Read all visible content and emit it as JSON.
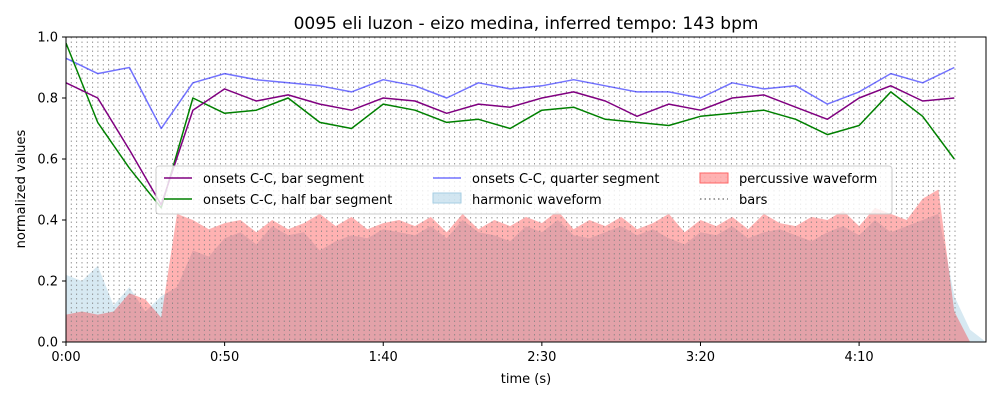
{
  "chart_data": {
    "type": "line",
    "title": "0095 eli luzon - eizo medina, inferred tempo: 143 bpm",
    "xlabel": "time (s)",
    "ylabel": "normalized values",
    "xlim": [
      0,
      290
    ],
    "ylim": [
      0,
      1.0
    ],
    "x_ticks": [
      {
        "value": 0,
        "label": "0:00"
      },
      {
        "value": 50,
        "label": "0:50"
      },
      {
        "value": 100,
        "label": "1:40"
      },
      {
        "value": 150,
        "label": "2:30"
      },
      {
        "value": 200,
        "label": "3:20"
      },
      {
        "value": 250,
        "label": "4:10"
      }
    ],
    "y_ticks": [
      {
        "value": 0.0,
        "label": "0.0"
      },
      {
        "value": 0.2,
        "label": "0.2"
      },
      {
        "value": 0.4,
        "label": "0.4"
      },
      {
        "value": 0.6,
        "label": "0.6"
      },
      {
        "value": 0.8,
        "label": "0.8"
      },
      {
        "value": 1.0,
        "label": "1.0"
      }
    ],
    "grid": false,
    "legend_position": "center",
    "legend_columns": 3,
    "bar_lines": {
      "name": "bars",
      "start": 0,
      "end": 281,
      "interval_seconds": 1.678,
      "color": "#808080"
    },
    "series": [
      {
        "name": "onsets C-C, bar segment",
        "kind": "line",
        "color": "#800080",
        "x": [
          0,
          10,
          20,
          30,
          40,
          50,
          60,
          70,
          80,
          90,
          100,
          110,
          120,
          130,
          140,
          150,
          160,
          170,
          180,
          190,
          200,
          210,
          220,
          230,
          240,
          250,
          260,
          270,
          280
        ],
        "values": [
          0.85,
          0.8,
          0.63,
          0.45,
          0.76,
          0.83,
          0.79,
          0.81,
          0.78,
          0.76,
          0.8,
          0.79,
          0.75,
          0.78,
          0.77,
          0.8,
          0.82,
          0.79,
          0.74,
          0.78,
          0.76,
          0.8,
          0.81,
          0.77,
          0.73,
          0.8,
          0.84,
          0.79,
          0.8
        ]
      },
      {
        "name": "onsets C-C, half bar segment",
        "kind": "line",
        "color": "#008000",
        "x": [
          0,
          10,
          20,
          30,
          40,
          50,
          60,
          70,
          80,
          90,
          100,
          110,
          120,
          130,
          140,
          150,
          160,
          170,
          180,
          190,
          200,
          210,
          220,
          230,
          240,
          250,
          260,
          270,
          280
        ],
        "values": [
          0.98,
          0.72,
          0.57,
          0.44,
          0.8,
          0.75,
          0.76,
          0.8,
          0.72,
          0.7,
          0.78,
          0.76,
          0.72,
          0.73,
          0.7,
          0.76,
          0.77,
          0.73,
          0.72,
          0.71,
          0.74,
          0.75,
          0.76,
          0.73,
          0.68,
          0.71,
          0.82,
          0.74,
          0.6
        ]
      },
      {
        "name": "onsets C-C, quarter segment",
        "kind": "line",
        "color": "#0000ff",
        "x": [
          0,
          10,
          20,
          30,
          40,
          50,
          60,
          70,
          80,
          90,
          100,
          110,
          120,
          130,
          140,
          150,
          160,
          170,
          180,
          190,
          200,
          210,
          220,
          230,
          240,
          250,
          260,
          270,
          280
        ],
        "values": [
          0.93,
          0.88,
          0.9,
          0.7,
          0.85,
          0.88,
          0.86,
          0.85,
          0.84,
          0.82,
          0.86,
          0.84,
          0.8,
          0.85,
          0.83,
          0.84,
          0.86,
          0.84,
          0.82,
          0.82,
          0.8,
          0.85,
          0.83,
          0.84,
          0.78,
          0.82,
          0.88,
          0.85,
          0.9
        ]
      },
      {
        "name": "harmonic waveform",
        "kind": "area",
        "color": "#a6cee3",
        "x": [
          0,
          5,
          10,
          15,
          20,
          25,
          30,
          35,
          40,
          45,
          50,
          55,
          60,
          65,
          70,
          75,
          80,
          85,
          90,
          95,
          100,
          105,
          110,
          115,
          120,
          125,
          130,
          135,
          140,
          145,
          150,
          155,
          160,
          165,
          170,
          175,
          180,
          185,
          190,
          195,
          200,
          205,
          210,
          215,
          220,
          225,
          230,
          235,
          240,
          245,
          250,
          255,
          260,
          265,
          270,
          275,
          280,
          285,
          290
        ],
        "values": [
          0.22,
          0.2,
          0.25,
          0.12,
          0.18,
          0.1,
          0.15,
          0.18,
          0.3,
          0.28,
          0.34,
          0.36,
          0.32,
          0.38,
          0.35,
          0.36,
          0.3,
          0.33,
          0.35,
          0.34,
          0.37,
          0.36,
          0.35,
          0.38,
          0.34,
          0.4,
          0.36,
          0.35,
          0.33,
          0.38,
          0.36,
          0.4,
          0.35,
          0.34,
          0.36,
          0.38,
          0.35,
          0.37,
          0.34,
          0.32,
          0.36,
          0.35,
          0.38,
          0.34,
          0.36,
          0.37,
          0.35,
          0.33,
          0.36,
          0.38,
          0.35,
          0.4,
          0.36,
          0.38,
          0.4,
          0.42,
          0.15,
          0.04,
          0.0
        ]
      },
      {
        "name": "percussive waveform",
        "kind": "area",
        "color": "#ff0000",
        "x": [
          0,
          5,
          10,
          15,
          20,
          25,
          30,
          35,
          40,
          45,
          50,
          55,
          60,
          65,
          70,
          75,
          80,
          85,
          90,
          95,
          100,
          105,
          110,
          115,
          120,
          125,
          130,
          135,
          140,
          145,
          150,
          155,
          160,
          165,
          170,
          175,
          180,
          185,
          190,
          195,
          200,
          205,
          210,
          215,
          220,
          225,
          230,
          235,
          240,
          245,
          250,
          255,
          260,
          265,
          270,
          275,
          280,
          285,
          290
        ],
        "values": [
          0.09,
          0.1,
          0.09,
          0.1,
          0.16,
          0.14,
          0.08,
          0.42,
          0.4,
          0.37,
          0.39,
          0.4,
          0.36,
          0.4,
          0.37,
          0.39,
          0.42,
          0.38,
          0.41,
          0.37,
          0.39,
          0.4,
          0.38,
          0.41,
          0.36,
          0.42,
          0.37,
          0.4,
          0.38,
          0.41,
          0.39,
          0.43,
          0.37,
          0.4,
          0.38,
          0.41,
          0.37,
          0.39,
          0.42,
          0.36,
          0.4,
          0.38,
          0.41,
          0.37,
          0.42,
          0.39,
          0.38,
          0.41,
          0.4,
          0.43,
          0.38,
          0.44,
          0.42,
          0.4,
          0.47,
          0.5,
          0.1,
          0.0,
          0.0
        ]
      }
    ]
  }
}
